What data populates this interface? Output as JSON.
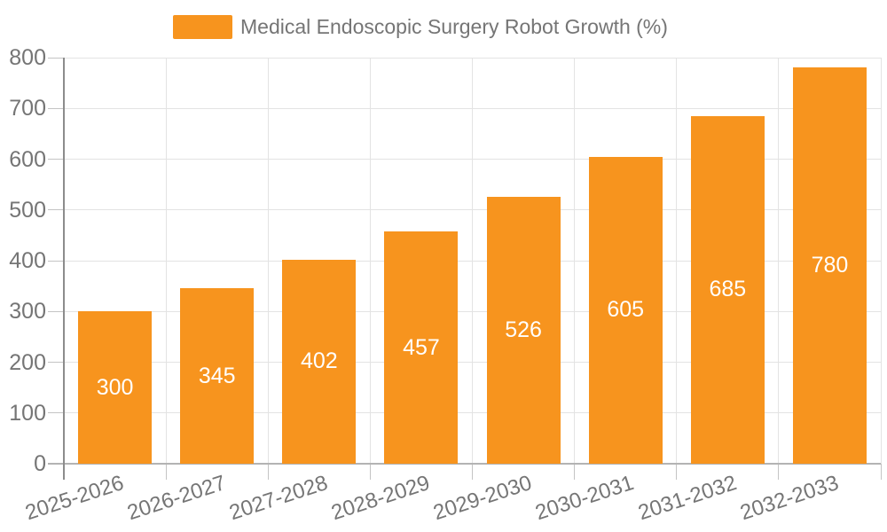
{
  "chart_data": {
    "type": "bar",
    "title": "Medical Endoscopic Surgery Robot Growth (%)",
    "legend_entries": [
      "Medical Endoscopic Surgery Robot Growth (%)"
    ],
    "legend_position": "top",
    "categories": [
      "2025-2026",
      "2026-2027",
      "2027-2028",
      "2028-2029",
      "2029-2030",
      "2030-2031",
      "2031-2032",
      "2032-2033"
    ],
    "values": [
      300,
      345,
      402,
      457,
      526,
      605,
      685,
      780
    ],
    "value_labels": [
      "300",
      "345",
      "402",
      "457",
      "526",
      "605",
      "685",
      "780"
    ],
    "xlabel": "",
    "ylabel": "",
    "ylim": [
      0,
      800
    ],
    "ytick_step": 100,
    "ytick_labels": [
      "0",
      "100",
      "200",
      "300",
      "400",
      "500",
      "600",
      "700",
      "800"
    ],
    "grid": true,
    "colors": {
      "bar": "#f7941e",
      "value_label": "#ffffff",
      "axis_text": "#757575",
      "gridline": "#e3e3e3",
      "y_axis_line": "#8c8c8c",
      "x_axis_line": "#b3b3b3",
      "tick": "#c4c4c4",
      "background": "#ffffff"
    }
  }
}
